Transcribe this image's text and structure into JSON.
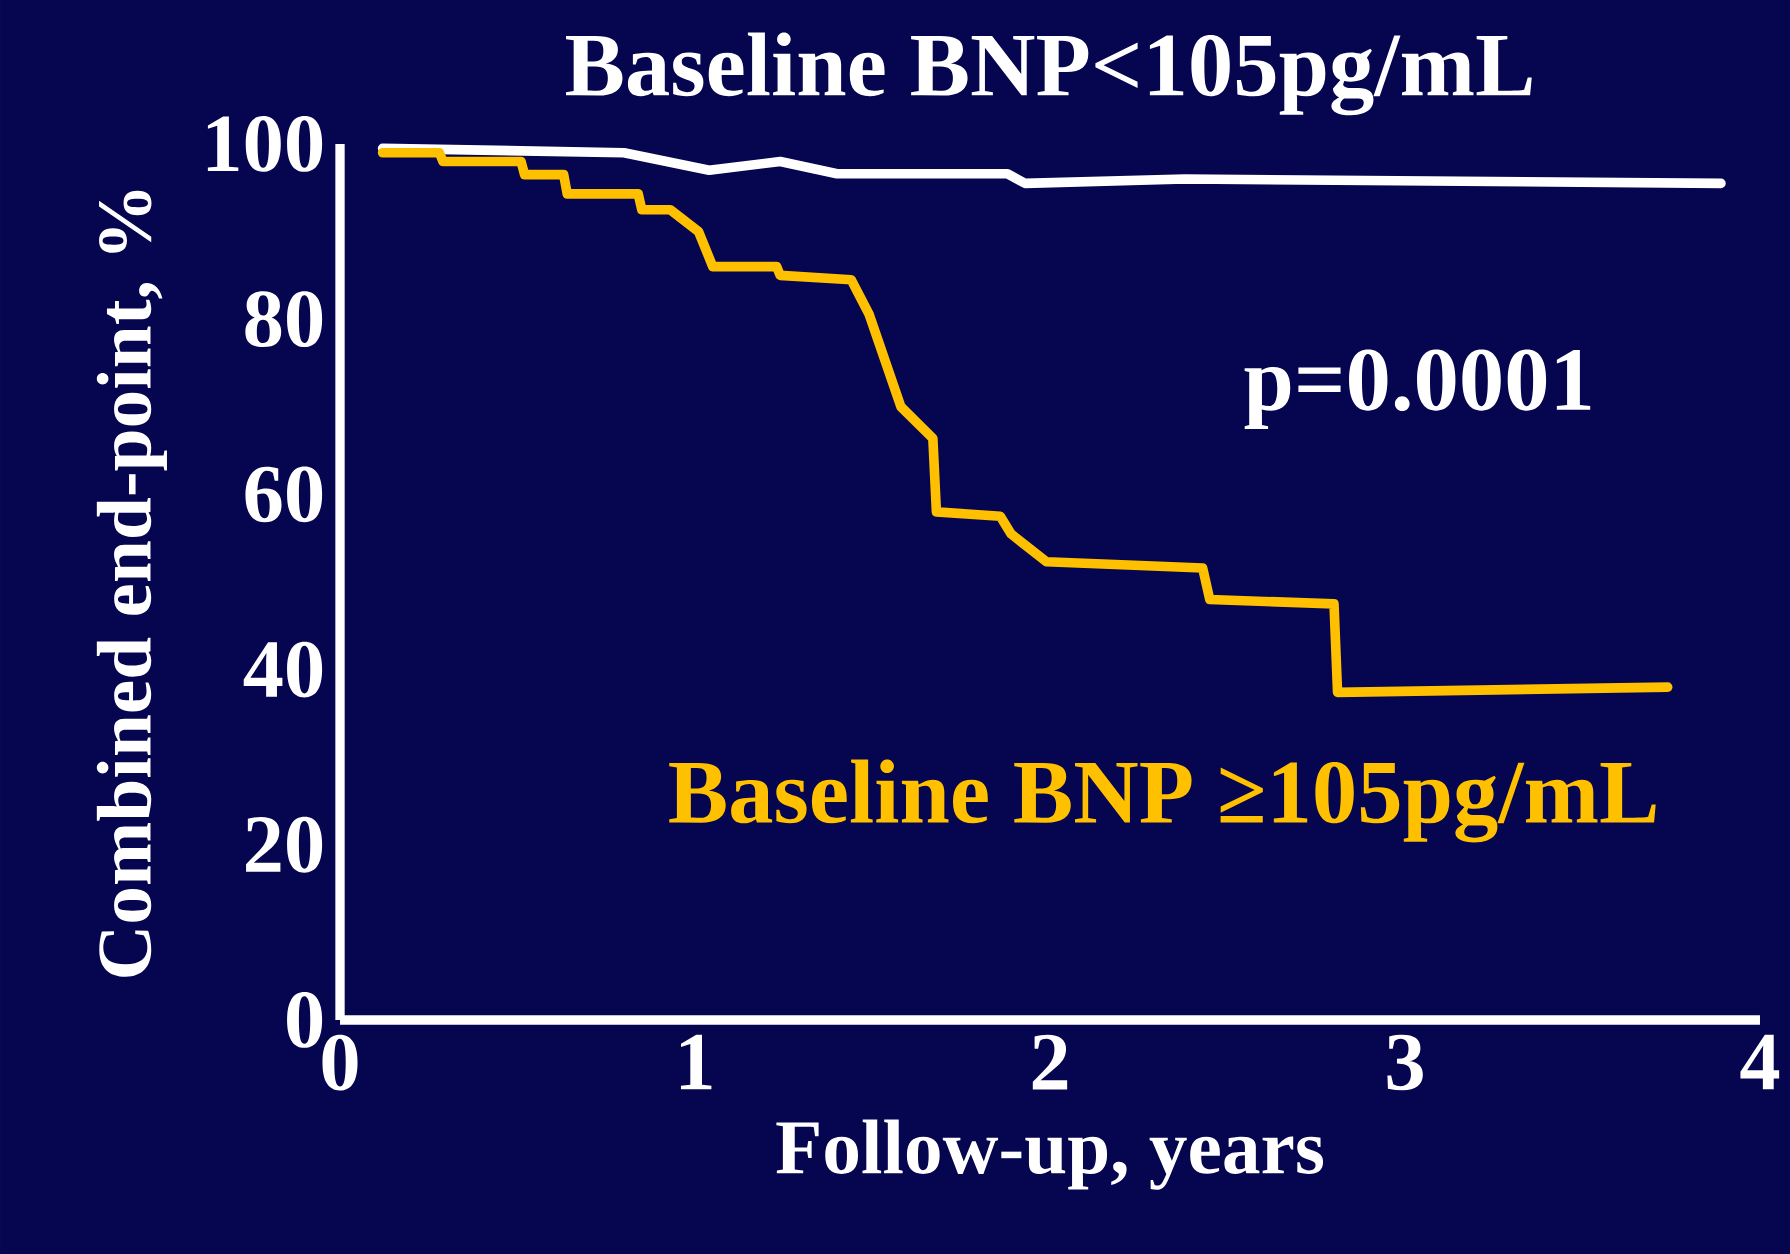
{
  "chart_data": {
    "type": "line",
    "xlabel": "Follow-up, years",
    "ylabel": "Combined end-point, %",
    "annotations": [
      "p=0.0001"
    ],
    "xlim": [
      0,
      4
    ],
    "ylim": [
      0,
      100
    ],
    "xticks": [
      0,
      1,
      2,
      3,
      4
    ],
    "yticks": [
      0,
      20,
      40,
      60,
      80,
      100
    ],
    "grid": false,
    "legend": false,
    "marker": "none",
    "line_style": "solid",
    "series": [
      {
        "name": "Baseline BNP<105pg/mL",
        "color": "#ffffff",
        "x": [
          0.12,
          0.8,
          1.04,
          1.24,
          1.4,
          1.88,
          1.93,
          2.38,
          3.89
        ],
        "values": [
          99.5,
          99,
          97,
          98,
          96.6,
          96.6,
          95.5,
          96,
          95.5
        ]
      },
      {
        "name": "Baseline BNP ≥105pg/mL",
        "color": "#ffc000",
        "x": [
          0.12,
          0.28,
          0.29,
          0.51,
          0.52,
          0.63,
          0.64,
          0.84,
          0.85,
          0.93,
          1.01,
          1.05,
          1.23,
          1.24,
          1.44,
          1.49,
          1.58,
          1.67,
          1.68,
          1.86,
          1.89,
          1.99,
          2.43,
          2.45,
          2.8,
          2.81,
          3.74
        ],
        "values": [
          99,
          99,
          98,
          98,
          96.5,
          96.5,
          94.3,
          94.3,
          92.5,
          92.5,
          90,
          86,
          86,
          85,
          84.5,
          80.6,
          70,
          66.4,
          58,
          57.5,
          55.5,
          52.3,
          51.6,
          48,
          47.5,
          37.4,
          38
        ]
      }
    ]
  }
}
